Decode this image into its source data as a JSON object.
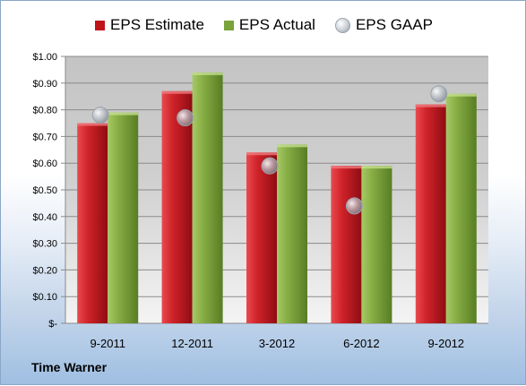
{
  "company": "Time Warner",
  "colors": {
    "estimate": "#c0141b",
    "estimate_light": "#e94a4f",
    "actual": "#7aa33a",
    "actual_light": "#a6c965",
    "gaap": "#b8bec6",
    "plot_top": "#c8c8c8",
    "plot_bottom": "#ffffff"
  },
  "legend_icons": [
    "red-square-icon",
    "green-square-icon",
    "gray-sphere-icon"
  ],
  "chart_data": {
    "type": "bar",
    "categories": [
      "9-2011",
      "12-2011",
      "3-2012",
      "6-2012",
      "9-2012"
    ],
    "series": [
      {
        "name": "EPS Estimate",
        "values": [
          0.75,
          0.87,
          0.64,
          0.59,
          0.82
        ]
      },
      {
        "name": "EPS Actual",
        "values": [
          0.79,
          0.94,
          0.67,
          0.59,
          0.86
        ]
      },
      {
        "name": "EPS GAAP",
        "values": [
          0.78,
          0.77,
          0.59,
          0.44,
          0.86
        ],
        "style": "marker"
      }
    ],
    "ylim": [
      0,
      1.0
    ],
    "yticks": [
      0,
      0.1,
      0.2,
      0.3,
      0.4,
      0.5,
      0.6,
      0.7,
      0.8,
      0.9,
      1.0
    ],
    "ytick_labels": [
      "$-",
      "$0.10",
      "$0.20",
      "$0.30",
      "$0.40",
      "$0.50",
      "$0.60",
      "$0.70",
      "$0.80",
      "$0.90",
      "$1.00"
    ],
    "legend_position": "top",
    "grid": true
  }
}
